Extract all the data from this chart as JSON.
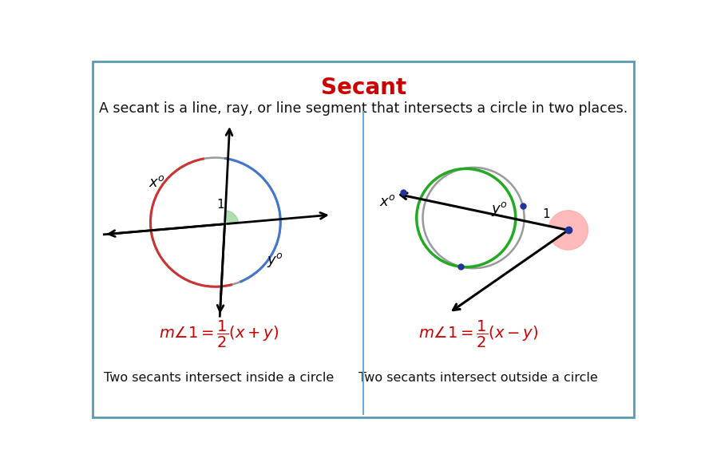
{
  "title": "Secant",
  "title_color": "#cc0000",
  "subtitle": "A secant is a line, ray, or line segment that intersects a circle in two places.",
  "bg_color": "#ffffff",
  "border_color": "#5a9ab5",
  "divider_color": "#6aabca",
  "left_caption": "Two secants intersect inside a circle",
  "right_caption": "Two secants intersect outside a circle",
  "formula_color": "#cc0000",
  "circle_gray": "#999999",
  "circle_green": "#22aa22",
  "arc_red": "#cc3333",
  "arc_blue": "#4477cc",
  "dot_blue": "#223399",
  "angle_green": "#88cc88",
  "angle_pink": "#ffaaaa"
}
